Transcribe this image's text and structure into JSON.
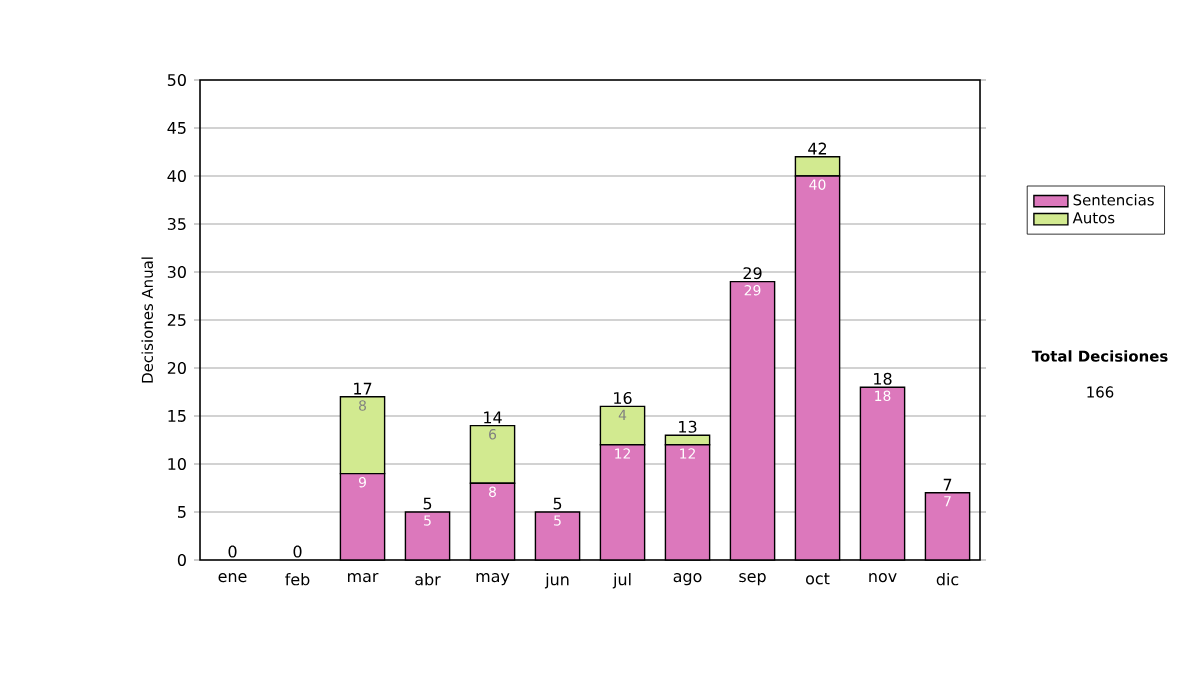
{
  "chart_data": {
    "type": "bar",
    "stacked": true,
    "ylabel": "Decisiones Anual",
    "categories": [
      "ene",
      "feb",
      "mar",
      "abr",
      "may",
      "jun",
      "jul",
      "ago",
      "sep",
      "oct",
      "nov",
      "dic"
    ],
    "series": [
      {
        "name": "Sentencias",
        "color": "#dc78bc",
        "values": [
          0,
          0,
          9,
          5,
          8,
          5,
          12,
          12,
          29,
          40,
          18,
          7
        ],
        "value_labels": [
          null,
          null,
          "9",
          "5",
          "8",
          "5",
          "12",
          "12",
          "29",
          "40",
          "18",
          "7"
        ]
      },
      {
        "name": "Autos",
        "color": "#d2ea90",
        "values": [
          0,
          0,
          8,
          0,
          6,
          0,
          4,
          1,
          0,
          2,
          0,
          0
        ],
        "value_labels": [
          null,
          null,
          "8",
          null,
          "6",
          null,
          "4",
          null,
          null,
          null,
          null,
          null
        ]
      }
    ],
    "totals": [
      "0",
      "0",
      "17",
      "5",
      "14",
      "5",
      "16",
      "13",
      "29",
      "42",
      "18",
      "7"
    ],
    "ylim": [
      0,
      50
    ],
    "yticks": [
      0,
      5,
      10,
      15,
      20,
      25,
      30,
      35,
      40,
      45,
      50
    ],
    "grid": "y",
    "legend": "right",
    "annotations": [
      "Total Decisiones",
      "166"
    ]
  }
}
